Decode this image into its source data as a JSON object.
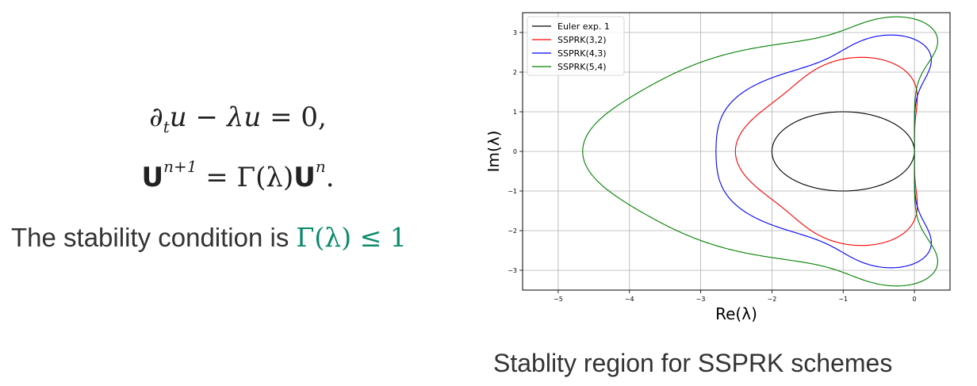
{
  "equations": {
    "line1": {
      "partial": "∂",
      "sub_t": "t",
      "u": "u",
      "minus": " − ",
      "lambda": "λ",
      "u2": "u",
      "eq": " = 0,"
    },
    "line2": {
      "U": "U",
      "sup1": "n+1",
      "eq": " = Γ(λ)",
      "U2": "U",
      "sup2": "n",
      "dot": "."
    }
  },
  "stability_text": {
    "prefix": "The stability condition is ",
    "condition": "Γ(λ) ≤ 1"
  },
  "caption": "Stablity region for SSPRK schemes",
  "chart_data": {
    "type": "line",
    "xlabel": "Re(λ)",
    "ylabel": "Im(λ)",
    "xlim": [
      -5.5,
      0.5
    ],
    "ylim": [
      -3.5,
      3.5
    ],
    "xticks": [
      "−5",
      "−4",
      "−3",
      "−2",
      "−1",
      "0"
    ],
    "yticks": [
      "3",
      "2",
      "1",
      "0",
      "−1",
      "−2",
      "−3"
    ],
    "grid": true,
    "legend_position": "top-left",
    "series": [
      {
        "name": "Euler exp. 1",
        "color": "#000000"
      },
      {
        "name": "SSPRK(3,2)",
        "color": "#ff0000"
      },
      {
        "name": "SSPRK(4,3)",
        "color": "#0000ff"
      },
      {
        "name": "SSPRK(5,4)",
        "color": "#008000"
      }
    ]
  }
}
